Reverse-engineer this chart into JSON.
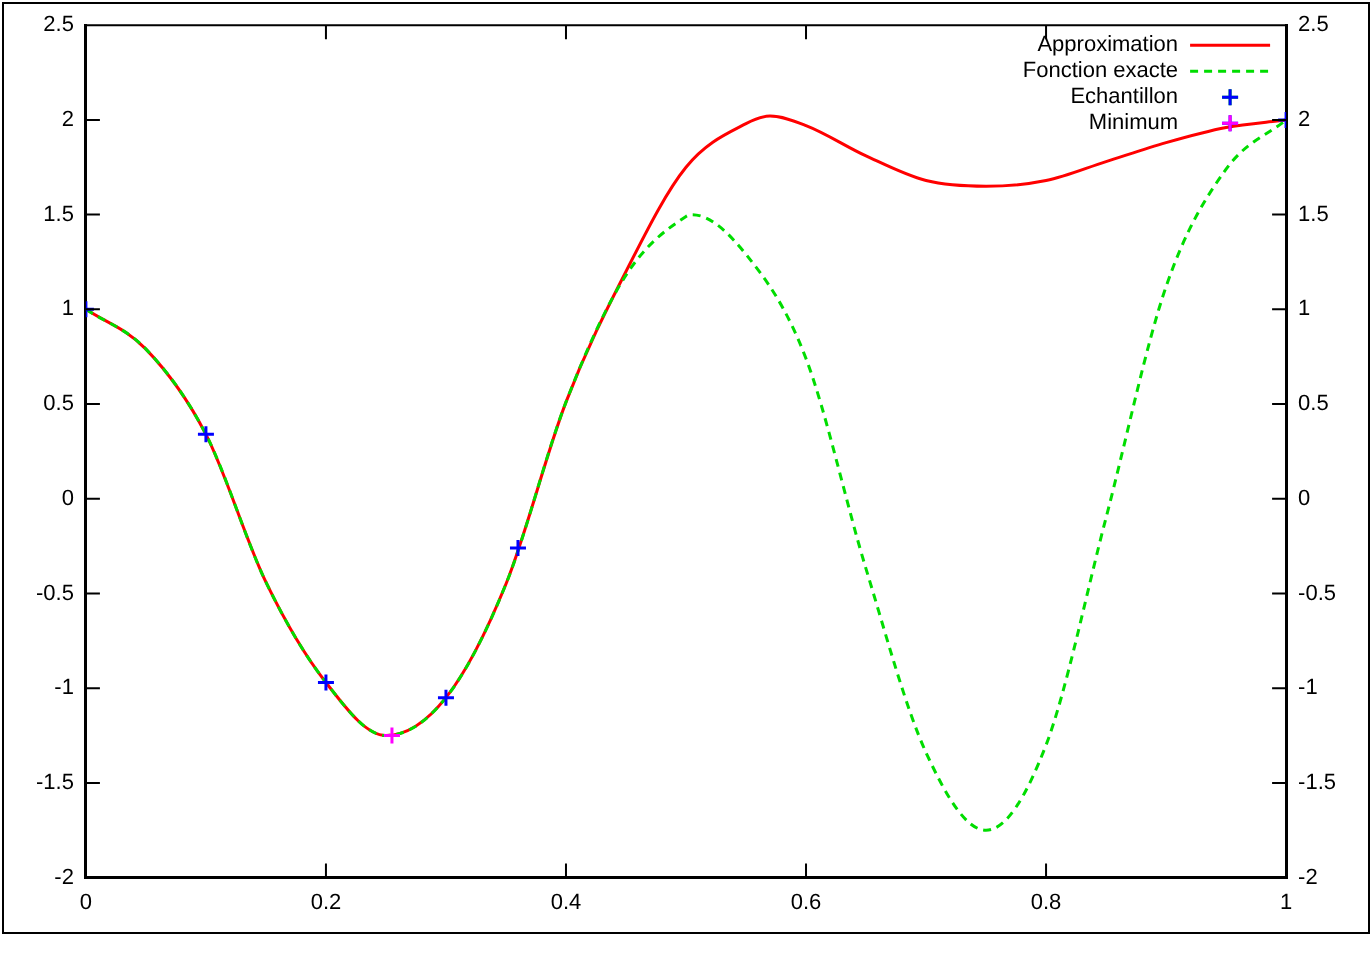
{
  "chart_data": {
    "type": "line",
    "xlim": [
      0,
      1
    ],
    "xticks": [
      0,
      0.2,
      0.4,
      0.6,
      0.8,
      1
    ],
    "ylim": [
      -2,
      2.5
    ],
    "yticks": [
      -2,
      -1.5,
      -1,
      -0.5,
      0,
      0.5,
      1,
      1.5,
      2,
      2.5
    ],
    "y2lim": [
      -2,
      2.5
    ],
    "y2ticks": [
      -2,
      -1.5,
      -1,
      -0.5,
      0,
      0.5,
      1,
      1.5,
      2,
      2.5
    ],
    "grid": false,
    "legend": "top right",
    "series": [
      {
        "name": "Approximation",
        "color": "#ff0000",
        "line_style": "solid",
        "marker": "none",
        "x": [
          0,
          0.05,
          0.1,
          0.15,
          0.2,
          0.25,
          0.3,
          0.35,
          0.4,
          0.45,
          0.5,
          0.55,
          0.57,
          0.6,
          0.65,
          0.7,
          0.75,
          0.8,
          0.85,
          0.9,
          0.95,
          1
        ],
        "values": [
          1,
          0.79,
          0.34,
          -0.44,
          -0.97,
          -1.25,
          -1.05,
          -0.45,
          0.51,
          1.2,
          1.75,
          1.98,
          2.02,
          1.97,
          1.81,
          1.68,
          1.65,
          1.68,
          1.78,
          1.88,
          1.96,
          2
        ]
      },
      {
        "name": "Fonction exacte",
        "color": "#00dd00",
        "line_style": "dashed",
        "marker": "none",
        "x": [
          0,
          0.05,
          0.1,
          0.15,
          0.2,
          0.25,
          0.3,
          0.35,
          0.4,
          0.45,
          0.5,
          0.505,
          0.55,
          0.6,
          0.65,
          0.7,
          0.75,
          0.8,
          0.85,
          0.9,
          0.95,
          1
        ],
        "values": [
          1,
          0.79,
          0.34,
          -0.44,
          -0.97,
          -1.25,
          -1.05,
          -0.45,
          0.51,
          1.18,
          1.49,
          1.5,
          1.29,
          0.74,
          -0.37,
          -1.34,
          -1.75,
          -1.3,
          -0.1,
          1.12,
          1.74,
          2
        ]
      },
      {
        "name": "Echantillon",
        "type": "scatter",
        "color": "#0000ff",
        "marker": "cross",
        "x": [
          0,
          0.1,
          0.2,
          0.3,
          0.36,
          1
        ],
        "values": [
          1,
          0.34,
          -0.97,
          -1.05,
          -0.26,
          2
        ]
      },
      {
        "name": "Minimum",
        "type": "scatter",
        "color": "#ff00ff",
        "marker": "cross",
        "x": [
          0.255
        ],
        "values": [
          -1.25
        ]
      }
    ]
  }
}
